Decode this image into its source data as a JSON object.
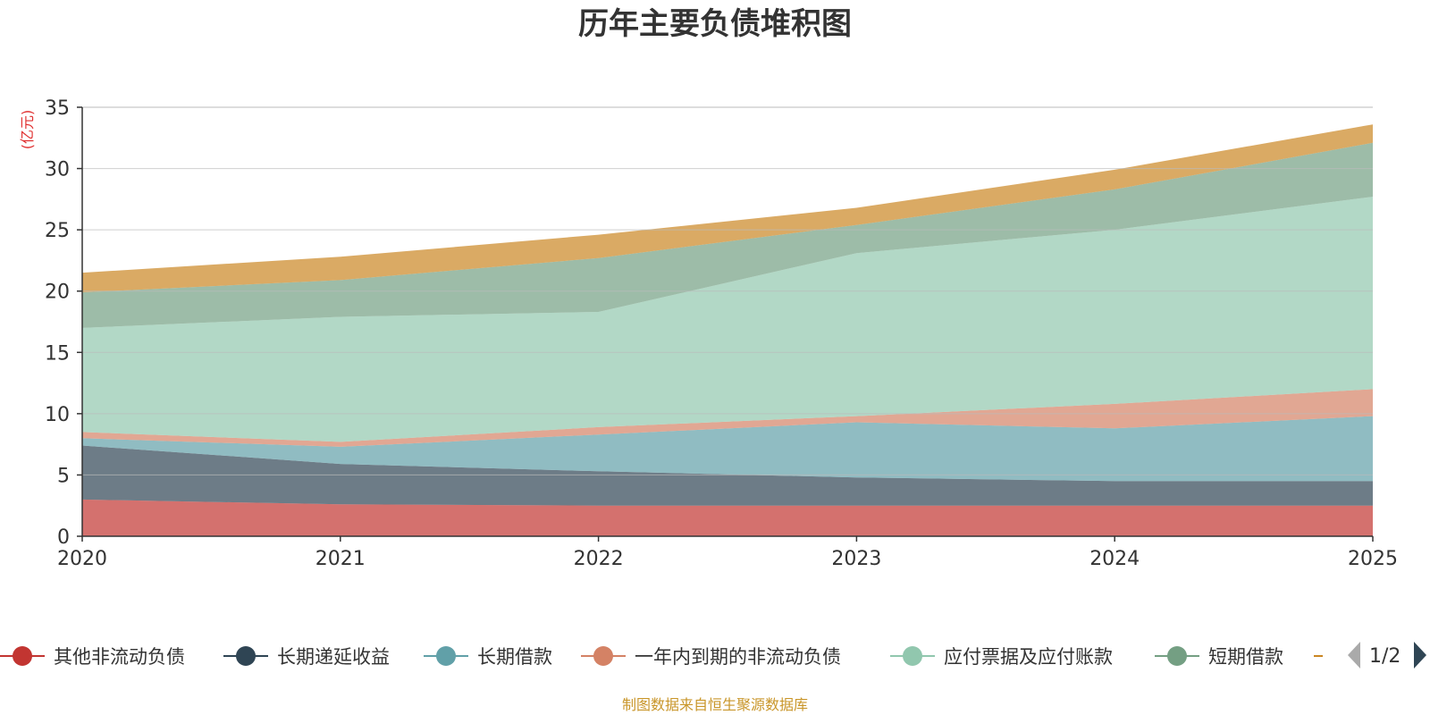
{
  "chart_data": {
    "type": "area",
    "stacked": true,
    "title": "历年主要负债堆积图",
    "ylabel": "(亿元)",
    "xlabel": "",
    "categories": [
      "2020",
      "2021",
      "2022",
      "2023",
      "2024",
      "2025"
    ],
    "ylim": [
      0,
      35
    ],
    "yticks": [
      0,
      5,
      10,
      15,
      20,
      25,
      30,
      35
    ],
    "grid": true,
    "series": [
      {
        "name": "其他非流动负债",
        "color": "#c23531",
        "values": [
          3.0,
          2.6,
          2.5,
          2.5,
          2.5,
          2.5
        ]
      },
      {
        "name": "长期递延收益",
        "color": "#2f4554",
        "values": [
          4.4,
          3.3,
          2.8,
          2.3,
          2.0,
          2.0
        ]
      },
      {
        "name": "长期借款",
        "color": "#61a0a8",
        "values": [
          0.6,
          1.4,
          3.0,
          4.5,
          4.3,
          5.3
        ]
      },
      {
        "name": "一年内到期的非流动负债",
        "color": "#d48265",
        "values": [
          0.5,
          0.4,
          0.6,
          0.5,
          2.0,
          2.2
        ]
      },
      {
        "name": "应付票据及应付账款",
        "color": "#91c7ae",
        "values": [
          8.5,
          10.2,
          9.4,
          13.3,
          14.2,
          15.7
        ]
      },
      {
        "name": "短期借款",
        "color": "#749f83",
        "values": [
          2.9,
          3.0,
          4.4,
          2.3,
          3.3,
          4.4
        ]
      },
      {
        "name": "",
        "color": "#ca8622",
        "values": [
          1.6,
          1.9,
          1.9,
          1.4,
          1.6,
          1.5
        ]
      }
    ]
  },
  "legend": {
    "page": "1/2",
    "prev_icon": "triangle-left-icon",
    "next_icon": "triangle-right-icon"
  },
  "source": "制图数据来自恒生聚源数据库"
}
